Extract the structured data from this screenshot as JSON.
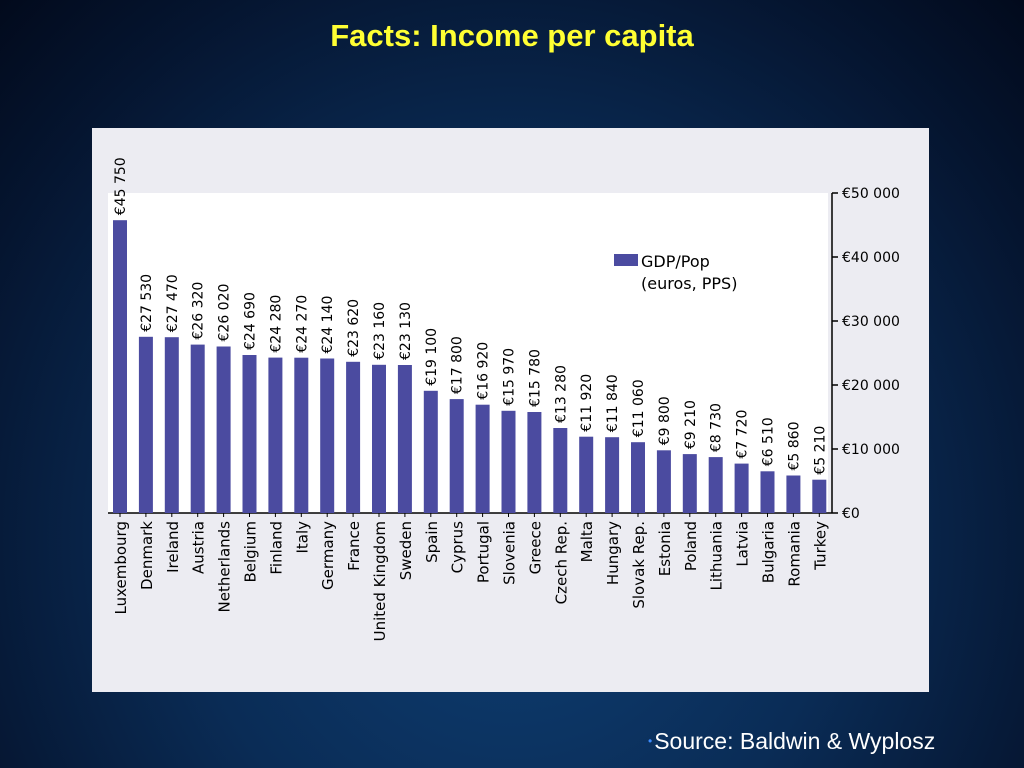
{
  "slide": {
    "title": "Facts: Income per capita",
    "source": "Source: Baldwin & Wyplosz"
  },
  "chart_data": {
    "type": "bar",
    "categories": [
      "Luxembourg",
      "Denmark",
      "Ireland",
      "Austria",
      "Netherlands",
      "Belgium",
      "Finland",
      "Italy",
      "Germany",
      "France",
      "United Kingdom",
      "Sweden",
      "Spain",
      "Cyprus",
      "Portugal",
      "Slovenia",
      "Greece",
      "Czech Rep.",
      "Malta",
      "Hungary",
      "Slovak Rep.",
      "Estonia",
      "Poland",
      "Lithuania",
      "Latvia",
      "Bulgaria",
      "Romania",
      "Turkey"
    ],
    "series": [
      {
        "name": "GDP/Pop (euros, PPS)",
        "values": [
          45750,
          27530,
          27470,
          26320,
          26020,
          24690,
          24280,
          24270,
          24140,
          23620,
          23160,
          23130,
          19100,
          17800,
          16920,
          15970,
          15780,
          13280,
          11920,
          11840,
          11060,
          9800,
          9210,
          8730,
          7720,
          6510,
          5860,
          5210
        ]
      }
    ],
    "value_labels": [
      "€45 750",
      "€27 530",
      "€27 470",
      "€26 320",
      "€26 020",
      "€24 690",
      "€24 280",
      "€24 270",
      "€24 140",
      "€23 620",
      "€23 160",
      "€23 130",
      "€19 100",
      "€17 800",
      "€16 920",
      "€15 970",
      "€15 780",
      "€13 280",
      "€11 920",
      "€11 840",
      "€11 060",
      "€9 800",
      "€9 210",
      "€8 730",
      "€7 720",
      "€6 510",
      "€5 860",
      "€5 210"
    ],
    "y_ticks": [
      0,
      10000,
      20000,
      30000,
      40000,
      50000
    ],
    "y_tick_labels": [
      "€0",
      "€10 000",
      "€20 000",
      "€30 000",
      "€40 000",
      "€50 000"
    ],
    "ylim": [
      0,
      50000
    ],
    "y_axis_side": "right",
    "legend": {
      "line1": "GDP/Pop",
      "line2": "(euros, PPS)",
      "position": "top-right"
    },
    "bar_color": "#4b4ba0",
    "grid": false
  }
}
